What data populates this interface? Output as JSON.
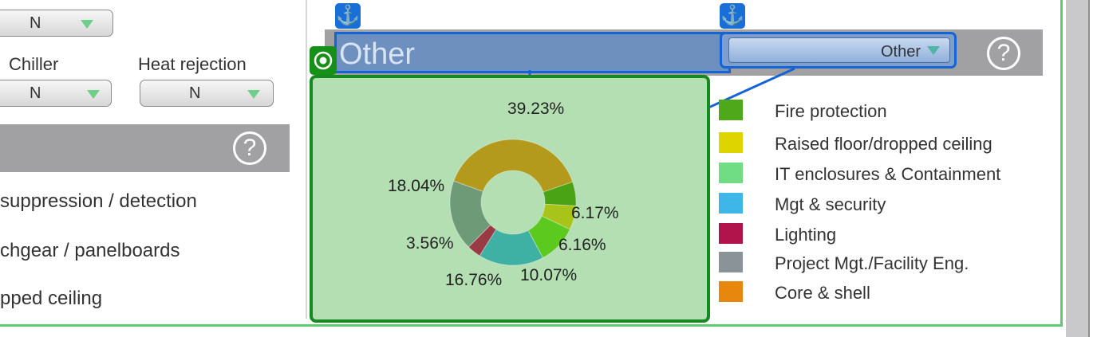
{
  "left_panel": {
    "top_dropdown_value": "N",
    "chiller": {
      "label": "Chiller",
      "value": "N"
    },
    "heat_rejection": {
      "label": "Heat rejection",
      "value": "N"
    },
    "list_items": [
      "suppression / detection",
      "chgear / panelboards",
      "pped ceiling"
    ]
  },
  "section": {
    "title": "Other",
    "dropdown_value": "Other",
    "help_symbol": "?"
  },
  "left_help_symbol": "?",
  "icons": {
    "anchor": "anchor-icon",
    "target": "target-icon",
    "help": "help-icon",
    "dropdown_arrow": "chevron-down-icon"
  },
  "colors": {
    "accent_blue": "#1564d6",
    "selection_green": "#178a1f",
    "frame_green": "#5fca72"
  },
  "chart_data": {
    "type": "pie",
    "variant": "donut",
    "slices": [
      {
        "label": "39.23%",
        "value": 39.23,
        "color": "#b49a1c"
      },
      {
        "label": "6.17%",
        "value": 6.17,
        "color": "#4aa315"
      },
      {
        "label": "6.16%",
        "value": 6.16,
        "color": "#a8c41a"
      },
      {
        "label": "10.07%",
        "value": 10.07,
        "color": "#5cc91e"
      },
      {
        "label": "16.76%",
        "value": 16.76,
        "color": "#3fb0a4"
      },
      {
        "label": "3.56%",
        "value": 3.56,
        "color": "#9a3a44"
      },
      {
        "label": "18.04%",
        "value": 18.04,
        "color": "#6e9a78"
      }
    ],
    "legend": [
      {
        "label": "Fire protection",
        "color": "#4fa71a"
      },
      {
        "label": "Raised floor/dropped ceiling",
        "color": "#ded400"
      },
      {
        "label": "IT enclosures & Containment",
        "color": "#70dc84"
      },
      {
        "label": "Mgt & security",
        "color": "#3fb6e8"
      },
      {
        "label": "Lighting",
        "color": "#b0144a"
      },
      {
        "label": "Project Mgt./Facility Eng.",
        "color": "#8a9498"
      },
      {
        "label": "Core & shell",
        "color": "#e8870e"
      }
    ]
  }
}
